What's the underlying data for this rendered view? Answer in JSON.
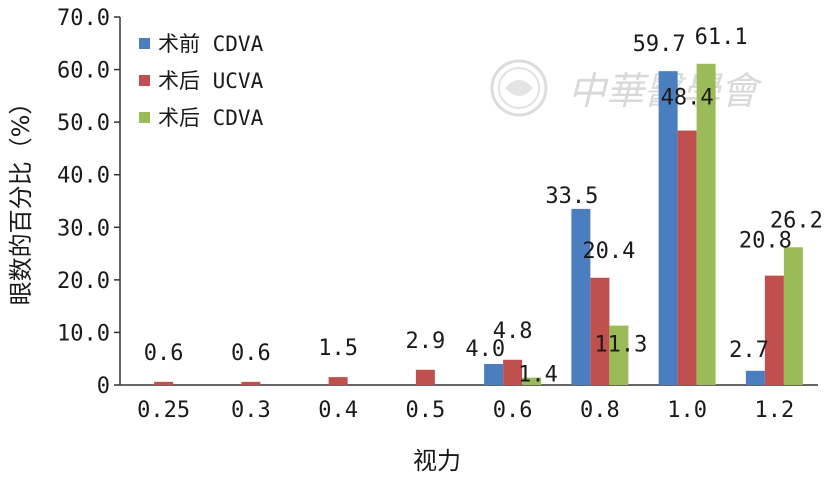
{
  "chart_data": {
    "type": "bar",
    "xlabel": "视力",
    "ylabel": "眼数的百分比（%）",
    "ylim": [
      0,
      70
    ],
    "yticks": [
      "0",
      "10.0",
      "20.0",
      "30.0",
      "40.0",
      "50.0",
      "60.0",
      "70.0"
    ],
    "categories": [
      "0.25",
      "0.3",
      "0.4",
      "0.5",
      "0.6",
      "0.8",
      "1.0",
      "1.2"
    ],
    "grid": false,
    "legend_position": "top-left",
    "series": [
      {
        "name": "术前 CDVA",
        "color": "#4a7ebf",
        "values": [
          0,
          0,
          0,
          0,
          4.0,
          33.5,
          59.7,
          2.7
        ],
        "labels": [
          "",
          "",
          "",
          "",
          "4.0",
          "33.5",
          "59.7",
          "2.7"
        ]
      },
      {
        "name": "术后 UCVA",
        "color": "#c0504d",
        "values": [
          0.6,
          0.6,
          1.5,
          2.9,
          4.8,
          20.4,
          48.4,
          20.8
        ],
        "labels": [
          "0.6",
          "0.6",
          "1.5",
          "2.9",
          "4.8",
          "20.4",
          "48.4",
          "20.8"
        ]
      },
      {
        "name": "术后 CDVA",
        "color": "#9bbb59",
        "values": [
          0,
          0,
          0,
          0,
          1.4,
          11.3,
          61.1,
          26.2
        ],
        "labels": [
          "",
          "",
          "",
          "",
          "1.4",
          "11.3",
          "61.1",
          "26.2"
        ]
      }
    ],
    "watermark": "中華醫學會",
    "watermark_seal": "seal-logo"
  }
}
